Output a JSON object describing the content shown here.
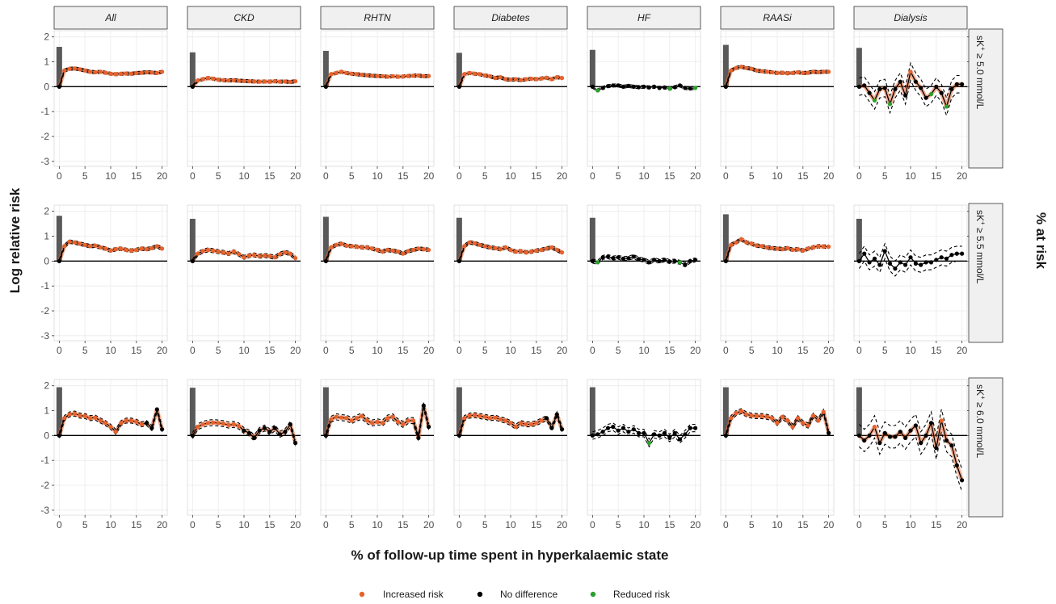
{
  "chart_data": {
    "type": "line",
    "facet_columns": [
      "All",
      "CKD",
      "RHTN",
      "Diabetes",
      "HF",
      "RAASi",
      "Dialysis"
    ],
    "facet_rows": [
      {
        "label_main": "sK",
        "label_sup": "+",
        "label_rest": " ≥ 5.0 mmol/L"
      },
      {
        "label_main": "sK",
        "label_sup": "+",
        "label_rest": " ≥ 5.5 mmol/L"
      },
      {
        "label_main": "sK",
        "label_sup": "+",
        "label_rest": " ≥ 6.0 mmol/L"
      }
    ],
    "xlabel": "% of follow-up time spent in hyperkalaemic state",
    "ylabel": "Log relative risk",
    "y2label": "% at risk",
    "xlim": [
      -1,
      21
    ],
    "ylim": [
      -3.2,
      2.25
    ],
    "xticks": [
      0,
      5,
      10,
      15,
      20
    ],
    "yticks": [
      -3,
      -2,
      -1,
      0,
      1,
      2
    ],
    "y2ticks": [
      0,
      50,
      100
    ],
    "y2_scale_note": "100% at risk aligns with log relative risk 2",
    "grid": true,
    "legend": {
      "position": "bottom",
      "entries": [
        {
          "label": "Increased risk",
          "color": "#e8622c"
        },
        {
          "label": "No difference",
          "color": "#000000"
        },
        {
          "label": "Reduced risk",
          "color": "#2ca02c"
        }
      ]
    },
    "colors": {
      "increased": "#e8622c",
      "none": "#000000",
      "reduced": "#2ca02c",
      "bar": "#595959",
      "ci": "#000000",
      "strip_fill": "#f0f0f0"
    },
    "bars_pct_at_risk": [
      [
        80,
        69,
        72,
        68,
        74,
        84,
        78
      ],
      [
        91,
        85,
        89,
        87,
        87,
        94,
        85
      ],
      [
        97,
        96,
        97,
        97,
        97,
        97,
        97
      ]
    ],
    "series": [
      [
        {
          "y": [
            0,
            0.65,
            0.72,
            0.73,
            0.7,
            0.65,
            0.6,
            0.58,
            0.6,
            0.56,
            0.52,
            0.5,
            0.52,
            0.53,
            0.52,
            0.55,
            0.56,
            0.58,
            0.57,
            0.55,
            0.6
          ],
          "ci": 0.06,
          "sig": "IIIIIIIIIIIIIIIIIIII"
        },
        {
          "y": [
            0,
            0.25,
            0.3,
            0.35,
            0.32,
            0.28,
            0.26,
            0.25,
            0.26,
            0.24,
            0.23,
            0.22,
            0.21,
            0.2,
            0.21,
            0.2,
            0.22,
            0.2,
            0.21,
            0.19,
            0.22
          ],
          "ci": 0.06,
          "sig": "IIIIIIIIIIIIIIIIIIII"
        },
        {
          "y": [
            0,
            0.5,
            0.55,
            0.6,
            0.55,
            0.52,
            0.5,
            0.48,
            0.46,
            0.44,
            0.43,
            0.42,
            0.4,
            0.42,
            0.4,
            0.41,
            0.43,
            0.44,
            0.45,
            0.42,
            0.43
          ],
          "ci": 0.06,
          "sig": "IIIIIIIIIIIIIIIIIIII"
        },
        {
          "y": [
            0,
            0.5,
            0.55,
            0.52,
            0.5,
            0.45,
            0.42,
            0.35,
            0.38,
            0.3,
            0.28,
            0.3,
            0.26,
            0.3,
            0.32,
            0.3,
            0.33,
            0.36,
            0.3,
            0.38,
            0.35
          ],
          "ci": 0.06,
          "sig": "IIIIIIIIIIIIIIIIIIII"
        },
        {
          "y": [
            0,
            -0.15,
            -0.05,
            0.02,
            0.05,
            0.05,
            0.0,
            0.03,
            0.0,
            -0.02,
            0.0,
            -0.03,
            0.0,
            -0.05,
            -0.03,
            -0.08,
            -0.02,
            0.05,
            -0.05,
            -0.07,
            -0.05
          ],
          "ci": 0.06,
          "sig": "RNNNNNNNNNNNNNRNNNNR"
        },
        {
          "y": [
            0,
            0.65,
            0.75,
            0.8,
            0.75,
            0.72,
            0.65,
            0.62,
            0.6,
            0.58,
            0.55,
            0.56,
            0.54,
            0.55,
            0.58,
            0.55,
            0.56,
            0.6,
            0.58,
            0.6,
            0.6
          ],
          "ci": 0.06,
          "sig": "IIIIIIIIIIIIIIIIIIII"
        },
        {
          "y": [
            0,
            0.05,
            -0.25,
            -0.55,
            -0.1,
            -0.05,
            -0.7,
            -0.1,
            0.2,
            -0.35,
            0.6,
            0.2,
            -0.05,
            -0.45,
            -0.3,
            0.0,
            -0.25,
            -0.8,
            -0.1,
            0.1,
            0.1
          ],
          "ci": 0.35,
          "sig": "NNRNNRNNNINNNRNNRNNN"
        }
      ],
      [
        {
          "y": [
            0,
            0.6,
            0.78,
            0.75,
            0.7,
            0.65,
            0.6,
            0.62,
            0.55,
            0.5,
            0.42,
            0.48,
            0.5,
            0.45,
            0.42,
            0.45,
            0.5,
            0.48,
            0.52,
            0.6,
            0.5
          ],
          "ci": 0.07,
          "sig": "IIIIIIIIIIIIIIIIIIII"
        },
        {
          "y": [
            0,
            0.3,
            0.4,
            0.45,
            0.42,
            0.38,
            0.35,
            0.3,
            0.38,
            0.28,
            0.15,
            0.22,
            0.25,
            0.2,
            0.22,
            0.2,
            0.15,
            0.28,
            0.35,
            0.3,
            0.12
          ],
          "ci": 0.08,
          "sig": "IIIIIIIIIIIIIIIIIIII"
        },
        {
          "y": [
            0,
            0.55,
            0.65,
            0.7,
            0.62,
            0.6,
            0.58,
            0.55,
            0.55,
            0.5,
            0.45,
            0.38,
            0.45,
            0.42,
            0.38,
            0.3,
            0.4,
            0.45,
            0.5,
            0.48,
            0.45
          ],
          "ci": 0.07,
          "sig": "IIIIIIIIIIIIIIIIIIII"
        },
        {
          "y": [
            0,
            0.6,
            0.75,
            0.72,
            0.65,
            0.6,
            0.55,
            0.52,
            0.48,
            0.55,
            0.45,
            0.38,
            0.4,
            0.35,
            0.38,
            0.42,
            0.45,
            0.5,
            0.55,
            0.45,
            0.35
          ],
          "ci": 0.07,
          "sig": "IIIIIIIIIIIIIIIIIIII"
        },
        {
          "y": [
            0,
            -0.05,
            0.15,
            0.18,
            0.12,
            0.15,
            0.1,
            0.12,
            0.18,
            0.08,
            0.05,
            -0.05,
            0.05,
            0.0,
            0.05,
            -0.02,
            0.0,
            -0.05,
            -0.15,
            0.0,
            0.05
          ],
          "ci": 0.08,
          "sig": "RNNNNNNNNNNNNNNNRNNN"
        },
        {
          "y": [
            0,
            0.65,
            0.75,
            0.88,
            0.75,
            0.7,
            0.62,
            0.6,
            0.55,
            0.52,
            0.5,
            0.48,
            0.52,
            0.45,
            0.48,
            0.42,
            0.5,
            0.55,
            0.6,
            0.58,
            0.58
          ],
          "ci": 0.07,
          "sig": "IIIIIIIIIIIIIIIIIIII"
        },
        {
          "y": [
            0,
            0.3,
            -0.05,
            0.1,
            -0.15,
            0.4,
            -0.1,
            -0.3,
            -0.05,
            -0.15,
            0.15,
            -0.1,
            -0.15,
            -0.05,
            -0.05,
            0.05,
            0.15,
            0.1,
            0.25,
            0.3,
            0.3
          ],
          "ci": 0.3,
          "sig": "NNNNNNNNNNNNNNNNNNNN"
        }
      ],
      [
        {
          "y": [
            0,
            0.7,
            0.85,
            0.88,
            0.8,
            0.78,
            0.7,
            0.72,
            0.6,
            0.5,
            0.35,
            0.15,
            0.5,
            0.6,
            0.6,
            0.55,
            0.45,
            0.5,
            0.3,
            1.05,
            0.25
          ],
          "ci": 0.1,
          "sig": "IIIIIIIIIIIIIIIINNNN"
        },
        {
          "y": [
            0,
            0.35,
            0.45,
            0.5,
            0.52,
            0.5,
            0.48,
            0.42,
            0.45,
            0.38,
            0.2,
            0.1,
            -0.1,
            0.2,
            0.3,
            0.15,
            0.3,
            0.05,
            0.15,
            0.45,
            -0.3
          ],
          "ci": 0.12,
          "sig": "IIIIIIIIINNNNNNNNNNN"
        },
        {
          "y": [
            0,
            0.65,
            0.75,
            0.72,
            0.7,
            0.6,
            0.7,
            0.78,
            0.6,
            0.5,
            0.55,
            0.5,
            0.7,
            0.75,
            0.55,
            0.45,
            0.6,
            0.6,
            -0.1,
            1.2,
            0.35
          ],
          "ci": 0.12,
          "sig": "IIIIIIIIIIIIIIIIINNN"
        },
        {
          "y": [
            0,
            0.7,
            0.8,
            0.82,
            0.78,
            0.75,
            0.7,
            0.72,
            0.65,
            0.6,
            0.5,
            0.35,
            0.5,
            0.45,
            0.45,
            0.5,
            0.6,
            0.7,
            0.3,
            0.85,
            0.25
          ],
          "ci": 0.1,
          "sig": "IIIIIIIIIIIIIIIINNNN"
        },
        {
          "y": [
            0,
            0.05,
            0.15,
            0.3,
            0.35,
            0.2,
            0.3,
            0.15,
            0.25,
            0.1,
            0.1,
            -0.3,
            0.05,
            0.0,
            0.1,
            -0.1,
            0.1,
            -0.15,
            0.05,
            0.3,
            0.3
          ],
          "ci": 0.15,
          "sig": "NNNNNNNNNNRNNNNNNNNN"
        },
        {
          "y": [
            0,
            0.7,
            0.9,
            0.98,
            0.85,
            0.8,
            0.78,
            0.78,
            0.75,
            0.7,
            0.5,
            0.75,
            0.6,
            0.35,
            0.7,
            0.5,
            0.4,
            0.8,
            0.6,
            0.95,
            0.1
          ],
          "ci": 0.1,
          "sig": "IIIIIIIIIIIIIIIIIIIN"
        },
        {
          "y": [
            0,
            -0.2,
            0.0,
            0.35,
            -0.3,
            0.1,
            -0.05,
            -0.05,
            0.15,
            -0.1,
            0.2,
            0.4,
            -0.3,
            0.0,
            0.5,
            -0.5,
            0.6,
            -0.2,
            -0.4,
            -1.2,
            -1.8
          ],
          "ci": 0.45,
          "sig": "NNINNNNNNNNNNNNINNNN"
        }
      ]
    ]
  }
}
